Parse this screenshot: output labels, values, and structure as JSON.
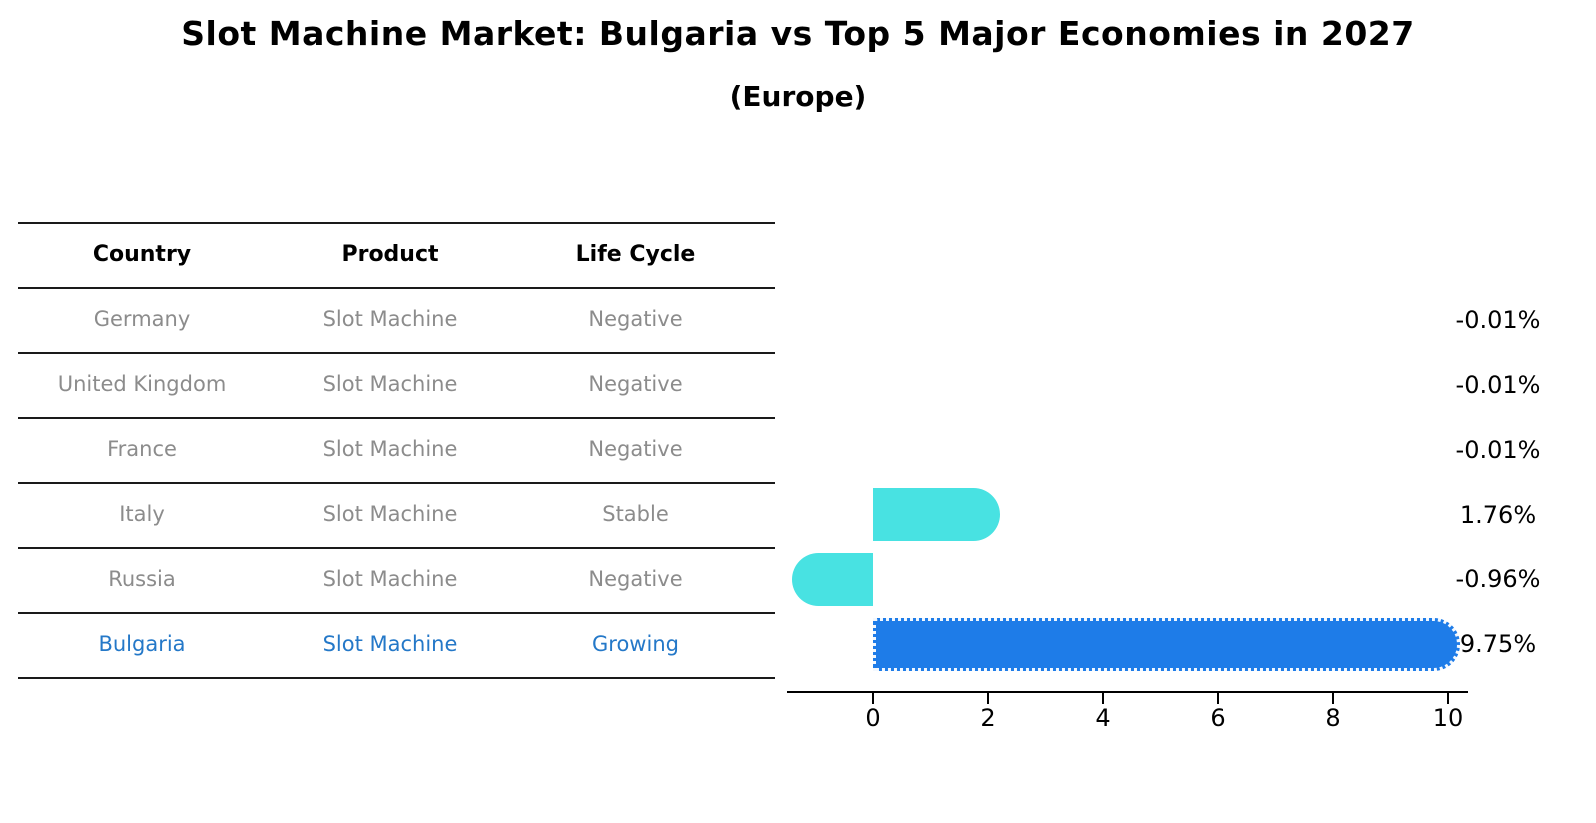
{
  "title": "Slot Machine Market: Bulgaria vs Top 5 Major Economies in 2027",
  "subtitle": "(Europe)",
  "table": {
    "headers": [
      "Country",
      "Product",
      "Life Cycle"
    ],
    "rows": [
      {
        "country": "Germany",
        "product": "Slot Machine",
        "life_cycle": "Negative",
        "highlighted": false
      },
      {
        "country": "United Kingdom",
        "product": "Slot Machine",
        "life_cycle": "Negative",
        "highlighted": false
      },
      {
        "country": "France",
        "product": "Slot Machine",
        "life_cycle": "Negative",
        "highlighted": false
      },
      {
        "country": "Italy",
        "product": "Slot Machine",
        "life_cycle": "Stable",
        "highlighted": false
      },
      {
        "country": "Russia",
        "product": "Slot Machine",
        "life_cycle": "Negative",
        "highlighted": false
      },
      {
        "country": "Bulgaria",
        "product": "Slot Machine",
        "life_cycle": "Growing",
        "highlighted": true
      }
    ]
  },
  "chart_data": {
    "type": "bar",
    "orientation": "horizontal",
    "title": "Slot Machine Market: Bulgaria vs Top 5 Major Economies in 2027",
    "subtitle": "(Europe)",
    "categories": [
      "Germany",
      "United Kingdom",
      "France",
      "Italy",
      "Russia",
      "Bulgaria"
    ],
    "values": [
      -0.01,
      -0.01,
      -0.01,
      1.76,
      -0.96,
      9.75
    ],
    "value_labels": [
      "-0.01%",
      "-0.01%",
      "-0.01%",
      "1.76%",
      "-0.96%",
      "9.75%"
    ],
    "xlabel": "",
    "ylabel": "",
    "xlim": [
      -1.6,
      10.5
    ],
    "xticks": [
      "0",
      "2",
      "4",
      "6",
      "8",
      "10"
    ],
    "grid": false,
    "legend": false,
    "colors": {
      "bar_default": "#48e2e2",
      "bar_highlight": "#1e7ce8",
      "highlight_text": "#2478c8",
      "row_text": "#8c8c8c",
      "axis": "#000000"
    }
  }
}
